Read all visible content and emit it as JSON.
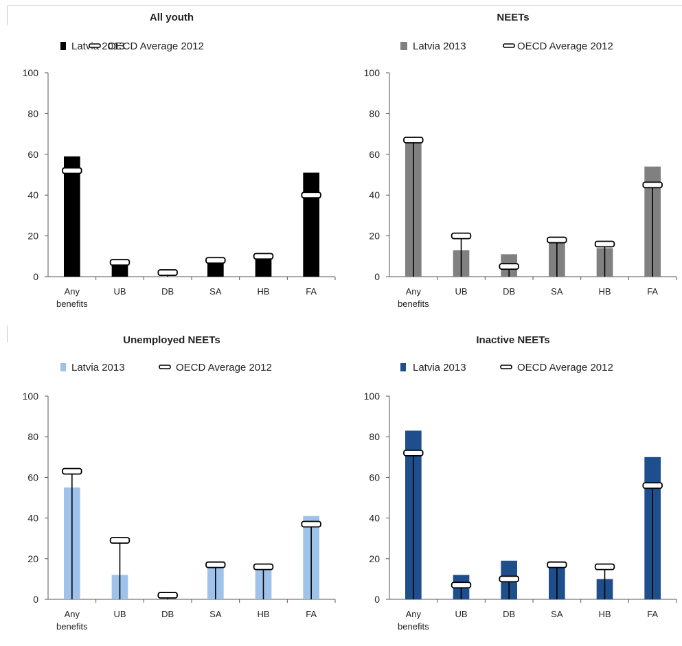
{
  "chart_data": [
    {
      "type": "bar",
      "title": "All youth",
      "legend_placement": "top",
      "bar_color": "#000000",
      "categories": [
        "Any benefits",
        "UB",
        "DB",
        "SA",
        "HB",
        "FA"
      ],
      "ylim": [
        0,
        100
      ],
      "yticks": [
        0,
        20,
        40,
        60,
        80,
        100
      ],
      "series": [
        {
          "name": "Latvia 2013",
          "kind": "bar",
          "values": [
            59,
            6,
            0,
            7,
            9,
            51
          ]
        },
        {
          "name": "OECD Average 2012",
          "kind": "marker",
          "values": [
            52,
            7,
            2,
            8,
            10,
            40
          ]
        }
      ]
    },
    {
      "type": "bar",
      "title": "NEETs",
      "legend_placement": "top",
      "bar_color": "#808080",
      "categories": [
        "Any benefits",
        "UB",
        "DB",
        "SA",
        "HB",
        "FA"
      ],
      "ylim": [
        0,
        100
      ],
      "yticks": [
        0,
        20,
        40,
        60,
        80,
        100
      ],
      "series": [
        {
          "name": "Latvia 2013",
          "kind": "bar",
          "values": [
            68,
            13,
            11,
            18,
            14,
            54
          ]
        },
        {
          "name": "OECD Average 2012",
          "kind": "marker",
          "values": [
            67,
            20,
            5,
            18,
            16,
            45
          ]
        }
      ]
    },
    {
      "type": "bar",
      "title": "Unemployed NEETs",
      "legend_placement": "top",
      "bar_color": "#9fc2ea",
      "categories": [
        "Any benefits",
        "UB",
        "DB",
        "SA",
        "HB",
        "FA"
      ],
      "ylim": [
        0,
        100
      ],
      "yticks": [
        0,
        20,
        40,
        60,
        80,
        100
      ],
      "series": [
        {
          "name": "Latvia 2013",
          "kind": "bar",
          "values": [
            55,
            12,
            0,
            16,
            15,
            41
          ]
        },
        {
          "name": "OECD Average 2012",
          "kind": "marker",
          "values": [
            63,
            29,
            2,
            17,
            16,
            37
          ]
        }
      ]
    },
    {
      "type": "bar",
      "title": "Inactive NEETs",
      "legend_placement": "top",
      "bar_color": "#1f4e8c",
      "categories": [
        "Any benefits",
        "UB",
        "DB",
        "SA",
        "HB",
        "FA"
      ],
      "ylim": [
        0,
        100
      ],
      "yticks": [
        0,
        20,
        40,
        60,
        80,
        100
      ],
      "series": [
        {
          "name": "Latvia 2013",
          "kind": "bar",
          "values": [
            83,
            12,
            19,
            17,
            10,
            70
          ]
        },
        {
          "name": "OECD Average 2012",
          "kind": "marker",
          "values": [
            72,
            7,
            10,
            17,
            16,
            56
          ]
        }
      ]
    }
  ]
}
